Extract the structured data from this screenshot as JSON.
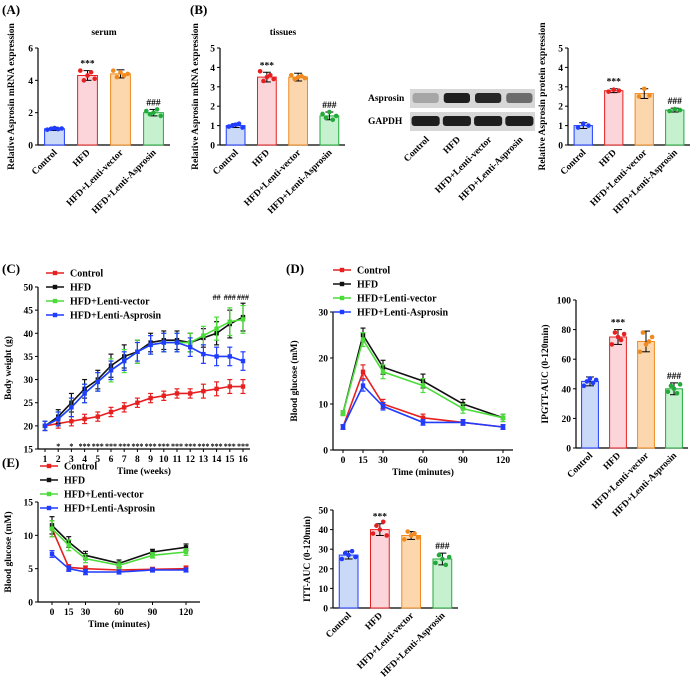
{
  "colors": {
    "control": "#1f3cff",
    "hfd": "#e62020",
    "vector": "#f08a1e",
    "asprosin": "#22aa3a",
    "control_fill": "#c9d9f7",
    "hfd_fill": "#fbd5da",
    "vector_fill": "#fcd7ae",
    "asprosin_fill": "#c6f1cf",
    "line_control": "#e62020",
    "line_hfd": "#111111",
    "line_vector": "#4bdc3a",
    "line_asprosin": "#1f3cff",
    "blot_band": "#141414",
    "blot_bg": "#d7d7d7"
  },
  "panels": {
    "a": "(A)",
    "b": "(B)",
    "c": "(C)",
    "d": "(D)",
    "e": "(E)"
  },
  "blot": {
    "rows": [
      "Asprosin",
      "GAPDH"
    ],
    "lanes": [
      "Control",
      "HFD",
      "HFD+Lenti-vector",
      "HFD+Lenti-Asprosin"
    ],
    "asprosin_intensity": [
      0.25,
      0.95,
      0.9,
      0.55
    ],
    "gapdh_intensity": [
      0.95,
      0.95,
      0.95,
      0.95
    ]
  },
  "chart_data": [
    {
      "id": "A",
      "type": "bar",
      "title": "serum",
      "ylabel": "Relative Asprosin mRNA expression",
      "categories": [
        "Control",
        "HFD",
        "HFD+Lenti-vector",
        "HFD+Lenti-Asprosin"
      ],
      "values": [
        1.0,
        4.3,
        4.4,
        2.0
      ],
      "errors": [
        0.1,
        0.3,
        0.25,
        0.2
      ],
      "points": [
        [
          0.95,
          1.0,
          1.05,
          0.98,
          1.02
        ],
        [
          4.6,
          4.0,
          4.3,
          4.5,
          4.1
        ],
        [
          4.6,
          4.2,
          4.5,
          4.3,
          4.4
        ],
        [
          2.1,
          1.9,
          2.0,
          2.2,
          1.8
        ]
      ],
      "ylim": [
        0,
        6
      ],
      "yticks": [
        0,
        2,
        4,
        6
      ],
      "annotations": [
        "",
        "***",
        "",
        "###"
      ]
    },
    {
      "id": "B1",
      "type": "bar",
      "title": "tissues",
      "ylabel": "Relative Asprosin mRNA expression",
      "categories": [
        "Control",
        "HFD",
        "HFD+Lenti-vector",
        "HFD+Lenti-Asprosin"
      ],
      "values": [
        1.0,
        3.5,
        3.5,
        1.5
      ],
      "errors": [
        0.1,
        0.25,
        0.2,
        0.2
      ],
      "points": [
        [
          0.95,
          1.0,
          1.05,
          1.1,
          0.9
        ],
        [
          3.8,
          3.3,
          3.5,
          3.6,
          3.4
        ],
        [
          3.6,
          3.4,
          3.5,
          3.55,
          3.45
        ],
        [
          1.6,
          1.4,
          1.7,
          1.3,
          1.5
        ]
      ],
      "ylim": [
        0,
        5
      ],
      "yticks": [
        0,
        1,
        2,
        3,
        4,
        5
      ],
      "annotations": [
        "",
        "***",
        "",
        "###"
      ]
    },
    {
      "id": "B2",
      "type": "bar",
      "title": "",
      "ylabel": "Relative Asprosin protein expression",
      "categories": [
        "Control",
        "HFD",
        "HFD+Lenti-vector",
        "HFD+Lenti-Asprosin"
      ],
      "values": [
        1.0,
        2.8,
        2.65,
        1.8
      ],
      "errors": [
        0.15,
        0.1,
        0.25,
        0.1
      ],
      "points": [
        [
          0.9,
          1.1,
          1.0
        ],
        [
          2.75,
          2.85,
          2.8
        ],
        [
          2.5,
          2.9,
          2.55
        ],
        [
          1.75,
          1.85,
          1.8
        ]
      ],
      "ylim": [
        0,
        5
      ],
      "yticks": [
        0,
        1,
        2,
        3,
        4,
        5
      ],
      "annotations": [
        "",
        "***",
        "",
        "###"
      ]
    },
    {
      "id": "C",
      "type": "line",
      "title": "",
      "xlabel": "Time (weeks)",
      "ylabel": "Body weight (g)",
      "x": [
        1,
        2,
        3,
        4,
        5,
        6,
        7,
        8,
        9,
        10,
        11,
        12,
        13,
        14,
        15,
        16
      ],
      "xticks": [
        1,
        2,
        3,
        4,
        5,
        6,
        7,
        8,
        9,
        10,
        11,
        12,
        13,
        14,
        15,
        16
      ],
      "ylim": [
        15,
        50
      ],
      "yticks": [
        15,
        20,
        25,
        30,
        35,
        40,
        45,
        50
      ],
      "series": [
        {
          "name": "Control",
          "color_key": "line_control",
          "values": [
            20,
            20.5,
            21,
            21.5,
            22,
            23,
            24,
            25,
            26,
            26.5,
            27,
            27,
            27.5,
            28,
            28.5,
            28.5
          ],
          "errors": [
            1,
            1,
            1,
            1,
            1,
            1,
            1,
            1,
            1,
            1,
            1,
            1,
            1.5,
            1.5,
            1.5,
            1.5
          ]
        },
        {
          "name": "HFD",
          "color_key": "line_hfd",
          "values": [
            20,
            22,
            25,
            28,
            30,
            33,
            35,
            36,
            38,
            38.5,
            38.5,
            38,
            39,
            40,
            42,
            43.5
          ],
          "errors": [
            1,
            1.5,
            2,
            2,
            2,
            2.5,
            2.5,
            2.5,
            2,
            2,
            2,
            2,
            2,
            2.5,
            3,
            3
          ]
        },
        {
          "name": "HFD+Lenti-vector",
          "color_key": "line_vector",
          "values": [
            20,
            21.5,
            24,
            27,
            29.5,
            32,
            34,
            36,
            37.5,
            38,
            38,
            38,
            39.5,
            41,
            42.5,
            43
          ],
          "errors": [
            1,
            1.5,
            2,
            2,
            2,
            2.5,
            2.5,
            2.5,
            2,
            2,
            2,
            2,
            2,
            2.5,
            3,
            3
          ]
        },
        {
          "name": "HFD+Lenti-Asprosin",
          "color_key": "line_asprosin",
          "values": [
            20,
            21.5,
            24,
            27,
            29.5,
            32,
            34,
            36,
            37.5,
            38,
            38,
            37,
            35.5,
            35,
            35,
            34
          ],
          "errors": [
            1,
            1.5,
            2,
            2,
            2,
            2,
            2,
            2,
            2,
            2,
            2,
            2,
            2,
            2,
            2,
            2
          ]
        }
      ],
      "upper_annotations": [
        {
          "x": 14,
          "text": "##"
        },
        {
          "x": 15,
          "text": "###"
        },
        {
          "x": 16,
          "text": "###"
        }
      ],
      "lower_annotations": [
        {
          "x": 2,
          "text": "*"
        },
        {
          "x": 3,
          "text": "*"
        },
        {
          "x": 4,
          "text": "***"
        },
        {
          "x": 5,
          "text": "***"
        },
        {
          "x": 6,
          "text": "***"
        },
        {
          "x": 7,
          "text": "***"
        },
        {
          "x": 8,
          "text": "***"
        },
        {
          "x": 9,
          "text": "***"
        },
        {
          "x": 10,
          "text": "***"
        },
        {
          "x": 11,
          "text": "***"
        },
        {
          "x": 12,
          "text": "***"
        },
        {
          "x": 13,
          "text": "***"
        },
        {
          "x": 14,
          "text": "***"
        },
        {
          "x": 15,
          "text": "***"
        },
        {
          "x": 16,
          "text": "***"
        }
      ]
    },
    {
      "id": "D1",
      "type": "line",
      "title": "",
      "xlabel": "Time (minutes)",
      "ylabel": "Blood glucose (mM)",
      "x": [
        0,
        15,
        30,
        60,
        90,
        120
      ],
      "xticks": [
        0,
        15,
        30,
        60,
        90,
        120
      ],
      "ylim": [
        0,
        30
      ],
      "yticks": [
        0,
        10,
        20,
        30
      ],
      "series": [
        {
          "name": "Control",
          "color_key": "line_control",
          "values": [
            5,
            17,
            10,
            7,
            6,
            5
          ],
          "errors": [
            0.5,
            1.5,
            1,
            0.8,
            0.6,
            0.5
          ]
        },
        {
          "name": "HFD",
          "color_key": "line_hfd",
          "values": [
            8,
            25,
            18,
            15,
            10,
            7
          ],
          "errors": [
            0.5,
            1.5,
            1.5,
            1.5,
            1,
            0.8
          ]
        },
        {
          "name": "HFD+Lenti-vector",
          "color_key": "line_vector",
          "values": [
            8,
            24,
            17,
            14,
            9,
            7
          ],
          "errors": [
            0.5,
            1.5,
            1.5,
            1.5,
            1,
            0.8
          ]
        },
        {
          "name": "HFD+Lenti-Asprosin",
          "color_key": "line_asprosin",
          "values": [
            5,
            14,
            9.5,
            6,
            6,
            5
          ],
          "errors": [
            0.5,
            1.2,
            0.8,
            0.6,
            0.6,
            0.5
          ]
        }
      ]
    },
    {
      "id": "D2",
      "type": "bar",
      "title": "",
      "ylabel": "IPGTT-AUC (0-120min)",
      "categories": [
        "Control",
        "HFD",
        "HFD+Lenti-vector",
        "HFD+Lenti-Asprosin"
      ],
      "values": [
        45,
        75,
        72,
        40
      ],
      "errors": [
        3,
        5,
        7,
        4
      ],
      "points": [
        [
          42,
          45,
          47,
          44,
          46
        ],
        [
          70,
          78,
          75,
          73,
          77
        ],
        [
          65,
          78,
          70,
          72,
          75
        ],
        [
          38,
          42,
          40,
          37,
          43
        ]
      ],
      "ylim": [
        0,
        100
      ],
      "yticks": [
        0,
        20,
        40,
        60,
        80,
        100
      ],
      "annotations": [
        "",
        "***",
        "",
        "###"
      ]
    },
    {
      "id": "E1",
      "type": "line",
      "title": "",
      "xlabel": "Time (minutes)",
      "ylabel": "Blood glucose (mM)",
      "x": [
        0,
        15,
        30,
        60,
        90,
        120
      ],
      "xticks": [
        0,
        15,
        30,
        60,
        90,
        120
      ],
      "ylim": [
        0,
        15
      ],
      "yticks": [
        0,
        5,
        10,
        15
      ],
      "series": [
        {
          "name": "Control",
          "color_key": "line_control",
          "values": [
            11,
            5.2,
            5,
            4.8,
            4.9,
            5
          ],
          "errors": [
            1.2,
            0.4,
            0.4,
            0.3,
            0.3,
            0.4
          ]
        },
        {
          "name": "HFD",
          "color_key": "line_hfd",
          "values": [
            11.5,
            9,
            7,
            5.8,
            7.5,
            8.2
          ],
          "errors": [
            1.3,
            0.8,
            0.6,
            0.5,
            0.4,
            0.5
          ]
        },
        {
          "name": "HFD+Lenti-vector",
          "color_key": "line_vector",
          "values": [
            11,
            8.5,
            6.5,
            5.5,
            7,
            7.5
          ],
          "errors": [
            1.2,
            0.8,
            0.6,
            0.5,
            0.4,
            0.5
          ]
        },
        {
          "name": "HFD+Lenti-Asprosin",
          "color_key": "line_asprosin",
          "values": [
            7.2,
            5,
            4.5,
            4.5,
            4.8,
            4.8
          ],
          "errors": [
            0.5,
            0.4,
            0.4,
            0.3,
            0.3,
            0.3
          ]
        }
      ]
    },
    {
      "id": "E2",
      "type": "bar",
      "title": "",
      "ylabel": "ITT-AUC (0-120min)",
      "categories": [
        "Control",
        "HFD",
        "HFD+Lenti-vector",
        "HFD+Lenti-Asprosin"
      ],
      "values": [
        27,
        40,
        37,
        25
      ],
      "errors": [
        2,
        3,
        2,
        3
      ],
      "points": [
        [
          25,
          28,
          27,
          29,
          26
        ],
        [
          38,
          42,
          40,
          44,
          37
        ],
        [
          35,
          39,
          37,
          38,
          36
        ],
        [
          23,
          27,
          25,
          22,
          26
        ]
      ],
      "ylim": [
        0,
        50
      ],
      "yticks": [
        0,
        10,
        20,
        30,
        40,
        50
      ],
      "annotations": [
        "",
        "***",
        "",
        "###"
      ]
    }
  ]
}
